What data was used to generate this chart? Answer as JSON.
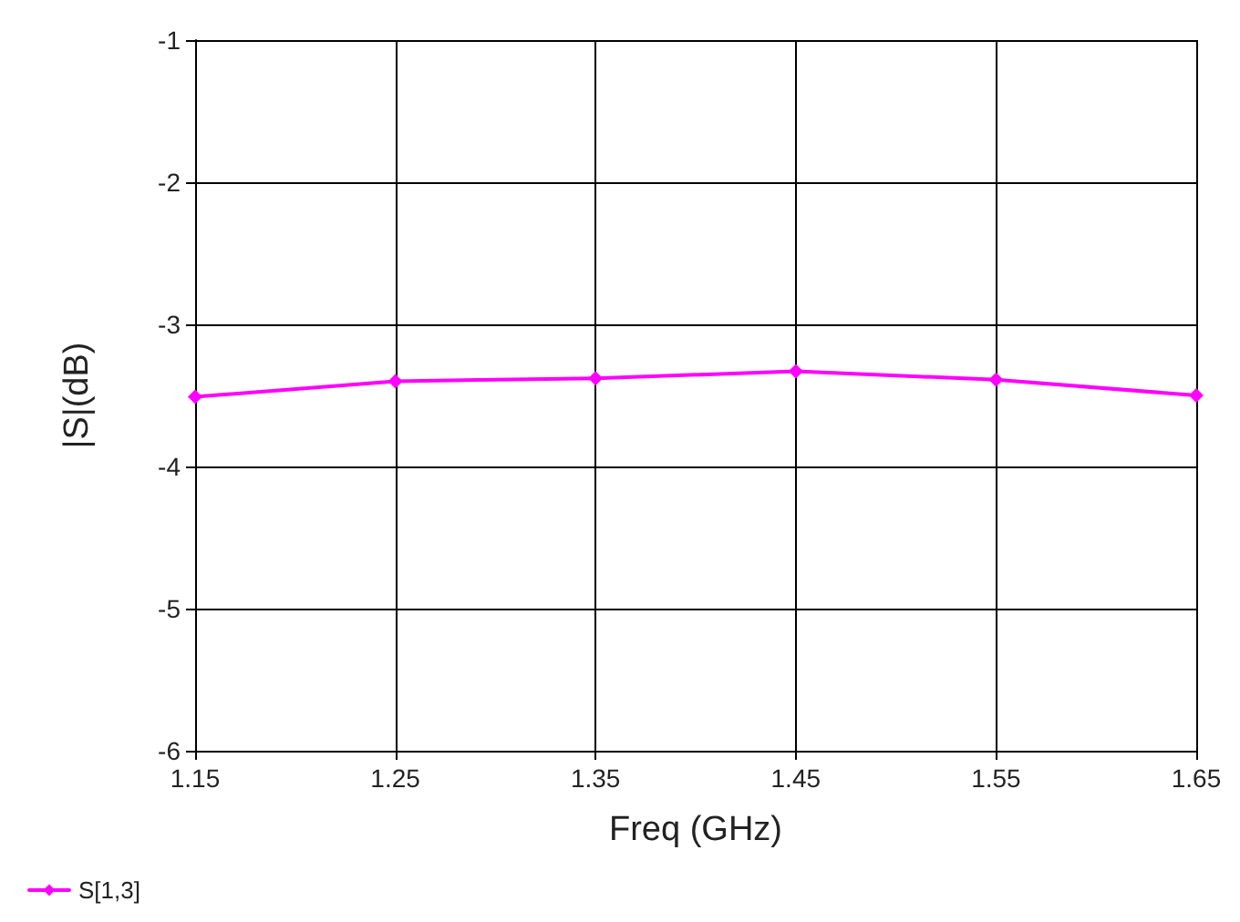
{
  "chart_data": {
    "type": "line",
    "xlabel": "Freq (GHz)",
    "ylabel": "|S|(dB)",
    "x": [
      1.15,
      1.25,
      1.35,
      1.45,
      1.55,
      1.65
    ],
    "series": [
      {
        "name": "S[1,3]",
        "color": "#ff00ff",
        "values": [
          -3.51,
          -3.4,
          -3.38,
          -3.33,
          -3.39,
          -3.5
        ]
      }
    ],
    "xlim": [
      1.15,
      1.65
    ],
    "xticks": [
      1.15,
      1.25,
      1.35,
      1.45,
      1.55,
      1.65
    ],
    "ylim": [
      -6,
      -1
    ],
    "yticks": [
      -6,
      -5,
      -4,
      -3,
      -2,
      -1
    ],
    "grid": true,
    "legend": "bottom left",
    "marker": "diamond",
    "line_style": "solid"
  }
}
